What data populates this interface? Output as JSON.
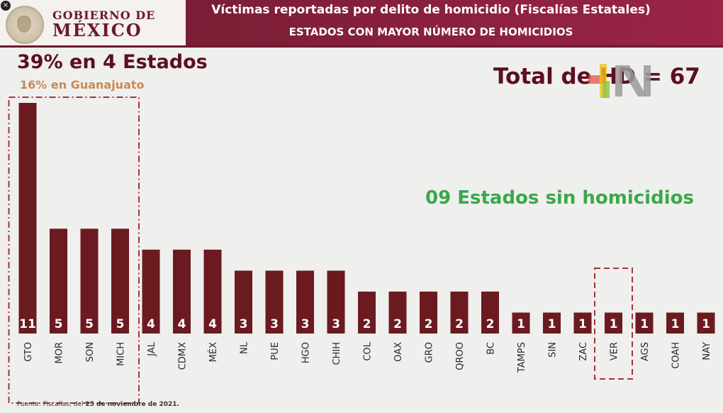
{
  "header": {
    "logo_line1": "GOBIERNO DE",
    "logo_line2": "MÉXICO",
    "title": "Víctimas reportadas por delito de homicidio (Fiscalías Estatales)",
    "subtitle": "ESTADOS CON MAYOR NÚMERO DE HOMICIDIOS"
  },
  "annotations": {
    "headline": "39% en 4 Estados",
    "subheadline": "16% en Guanajuato",
    "total": "Total de HD = 67",
    "no_homicides": "09 Estados sin homicidios"
  },
  "footer": {
    "source": "Fuente: Fiscalías, del ",
    "date": "25 de noviembre de 2021."
  },
  "colors": {
    "bar": "#6b1a20",
    "brand": "#7a1d35",
    "highlight_box": "#a8323a",
    "green": "#3aa84a"
  },
  "chart_data": {
    "type": "bar",
    "categories": [
      "GTO",
      "MOR",
      "SON",
      "MICH",
      "JAL",
      "CDMX",
      "MÉX",
      "NL",
      "PUE",
      "HGO",
      "CHIH",
      "COL",
      "OAX",
      "GRO",
      "QROO",
      "BC",
      "TAMPS",
      "SIN",
      "ZAC",
      "VER",
      "AGS",
      "COAH",
      "NAY"
    ],
    "values": [
      11,
      5,
      5,
      5,
      4,
      4,
      4,
      3,
      3,
      3,
      3,
      2,
      2,
      2,
      2,
      2,
      1,
      1,
      1,
      1,
      1,
      1,
      1
    ],
    "data_labels": true,
    "highlighted_groups": [
      [
        "GTO",
        "MOR",
        "SON",
        "MICH"
      ],
      [
        "VER"
      ]
    ],
    "ylim": [
      0,
      11
    ]
  }
}
